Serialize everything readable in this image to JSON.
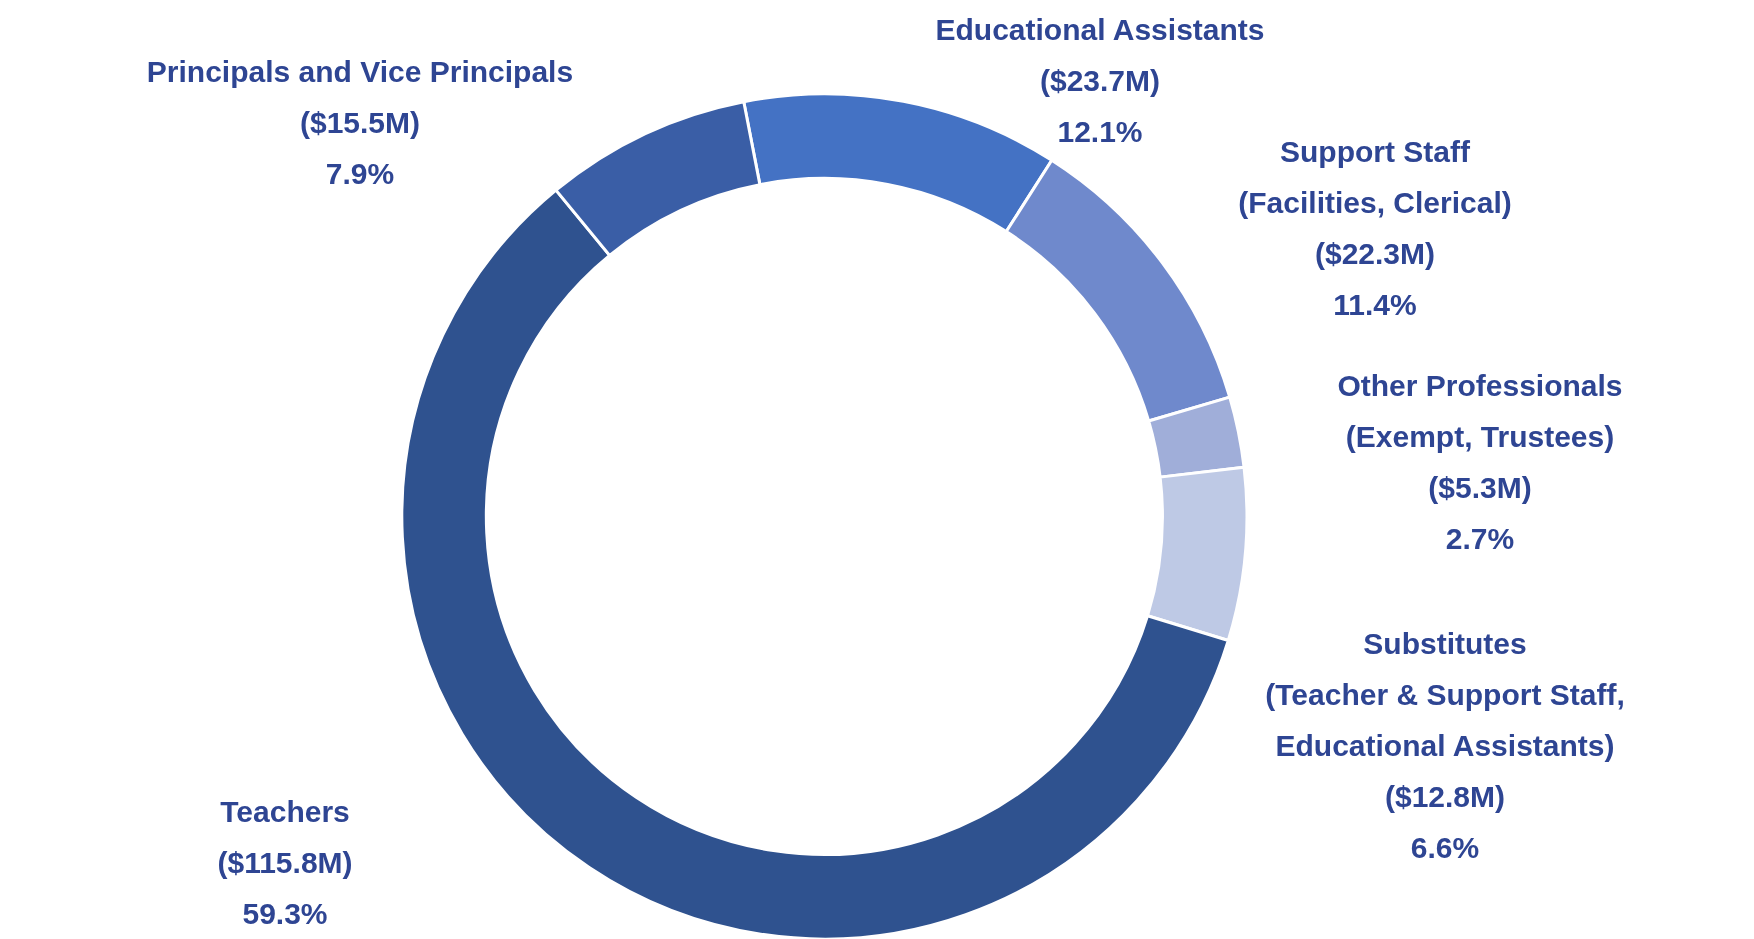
{
  "chart_data": {
    "type": "donut",
    "categories": [
      "Educational Assistants",
      "Support Staff\n(Facilities, Clerical)",
      "Other Professionals\n(Exempt, Trustees)",
      "Substitutes\n(Teacher & Support Staff,\nEducational Assistants)",
      "Teachers",
      "Principals and Vice Principals"
    ],
    "values": [
      12.1,
      11.4,
      2.7,
      6.6,
      59.3,
      7.9
    ],
    "value_labels": [
      "($23.7M)\n12.1%",
      "($22.3M)\n11.4%",
      "($5.3M)\n2.7%",
      "($12.8M)\n6.6%",
      "($115.8M)\n59.3%",
      "($15.5M)\n7.9%"
    ],
    "colors": [
      "#4472c4",
      "#6f89cc",
      "#a0aed9",
      "#bec9e5",
      "#2f528f",
      "#3a5ea6"
    ],
    "legend": false
  }
}
